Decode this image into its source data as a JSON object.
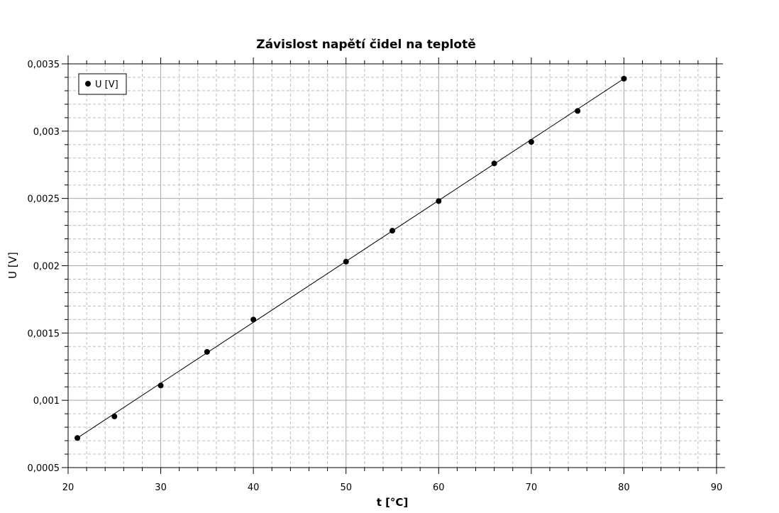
{
  "chart_data": {
    "type": "scatter",
    "title": "Závislost napětí čidel na teplotě",
    "xlabel": "t [°C]",
    "ylabel": "U [V]",
    "xlim": [
      20,
      90
    ],
    "ylim": [
      0.0005,
      0.0035
    ],
    "xticks": [
      20,
      30,
      40,
      50,
      60,
      70,
      80,
      90
    ],
    "xtick_labels": [
      "20",
      "30",
      "40",
      "50",
      "60",
      "70",
      "80",
      "90"
    ],
    "yticks": [
      0.0005,
      0.001,
      0.0015,
      0.002,
      0.0025,
      0.003,
      0.0035
    ],
    "ytick_labels": [
      "0,0005",
      "0,001",
      "0,0015",
      "0,002",
      "0,0025",
      "0,003",
      "0,0035"
    ],
    "grid": true,
    "legend": {
      "position": "top-left"
    },
    "series": [
      {
        "name": "U [V]",
        "color": "#000000",
        "x": [
          21,
          25,
          30,
          35,
          40,
          50,
          55,
          60,
          66,
          70,
          75,
          80
        ],
        "y": [
          0.00072,
          0.00088,
          0.00111,
          0.00136,
          0.0016,
          0.00203,
          0.00226,
          0.00248,
          0.00276,
          0.00292,
          0.00315,
          0.00339
        ]
      }
    ],
    "fit_line": {
      "x": [
        21,
        80
      ],
      "y": [
        0.00072,
        0.00339
      ]
    }
  }
}
